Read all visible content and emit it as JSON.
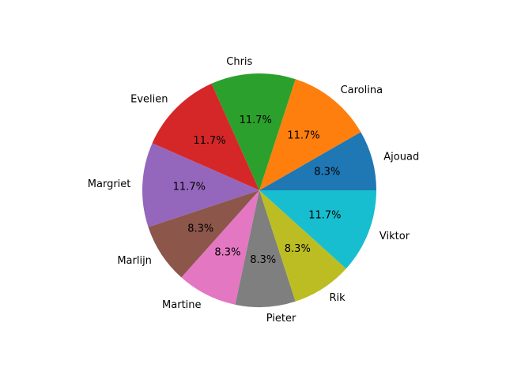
{
  "chart_data": {
    "type": "pie",
    "categories": [
      "Ajouad",
      "Carolina",
      "Chris",
      "Evelien",
      "Margriet",
      "Marlijn",
      "Martine",
      "Pieter",
      "Rik",
      "Viktor"
    ],
    "values": [
      8.3,
      11.7,
      11.7,
      11.7,
      11.7,
      8.3,
      8.3,
      8.3,
      8.3,
      11.7
    ],
    "percent_labels": [
      "8.3%",
      "11.7%",
      "11.7%",
      "11.7%",
      "11.7%",
      "8.3%",
      "8.3%",
      "8.3%",
      "8.3%",
      "11.7%"
    ],
    "colors": [
      "#1f77b4",
      "#ff7f0e",
      "#2ca02c",
      "#d62728",
      "#9467bd",
      "#8c564b",
      "#e377c2",
      "#7f7f7f",
      "#bcbd22",
      "#17becf"
    ],
    "start_angle_deg": 0,
    "direction": "counterclockwise",
    "title": "",
    "legend": "none"
  }
}
